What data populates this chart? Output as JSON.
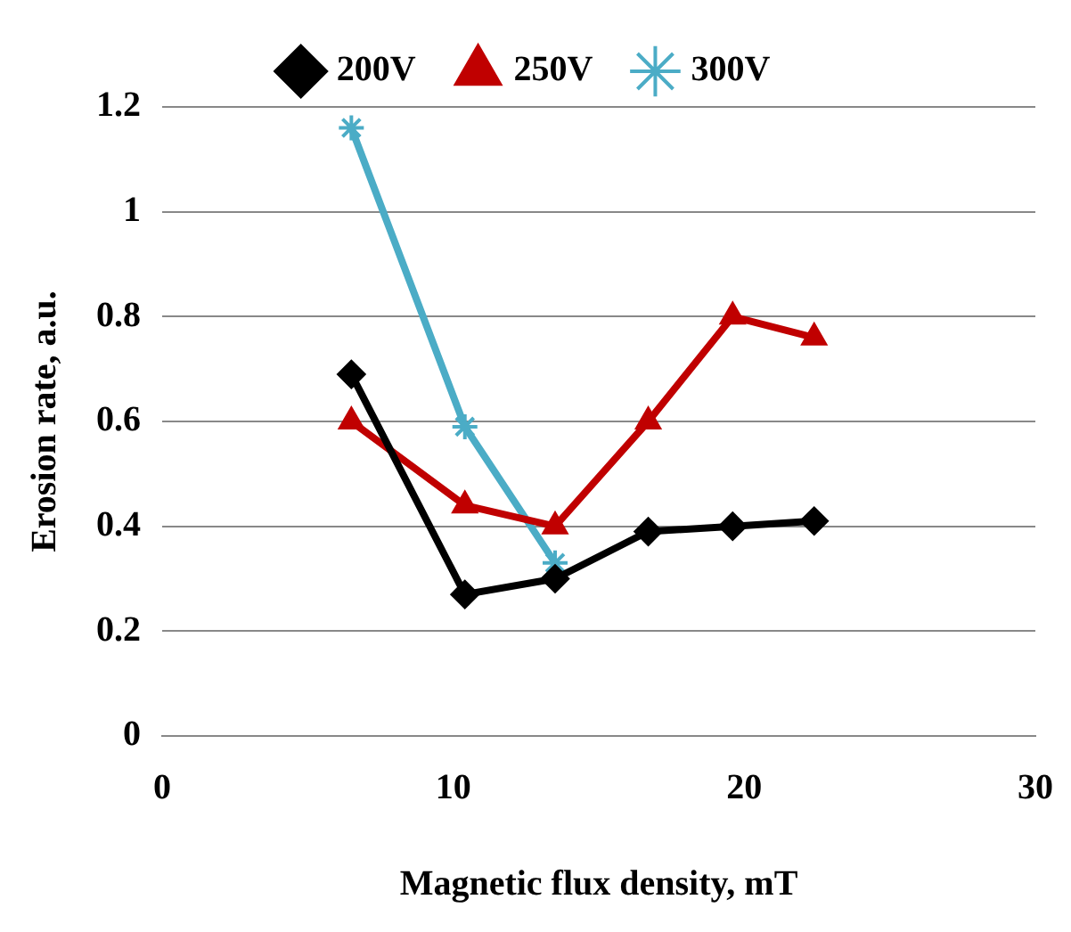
{
  "chart_data": {
    "type": "line",
    "xlabel": "Magnetic flux density, mT",
    "ylabel": "Erosion rate, a.u.",
    "xlim": [
      0,
      30
    ],
    "xticks": [
      0,
      10,
      20,
      30
    ],
    "ylim": [
      0,
      1.2
    ],
    "yticks": [
      0,
      0.2,
      0.4,
      0.6,
      0.8,
      1,
      1.2
    ],
    "grid": "y",
    "legend": "top",
    "line_style": "solid",
    "series": [
      {
        "name": "200V",
        "color": "#000000",
        "marker": "diamond",
        "x": [
          6.5,
          10.4,
          13.5,
          16.7,
          19.6,
          22.4
        ],
        "values": [
          0.69,
          0.27,
          0.3,
          0.39,
          0.4,
          0.41
        ]
      },
      {
        "name": "250V",
        "color": "#c00000",
        "marker": "triangle",
        "x": [
          6.5,
          10.4,
          13.5,
          16.7,
          19.6,
          22.4
        ],
        "values": [
          0.6,
          0.44,
          0.4,
          0.6,
          0.8,
          0.76
        ]
      },
      {
        "name": "300V",
        "color": "#4bacc6",
        "marker": "cross",
        "x": [
          6.5,
          10.4,
          13.5
        ],
        "values": [
          1.16,
          0.59,
          0.33
        ]
      }
    ]
  }
}
